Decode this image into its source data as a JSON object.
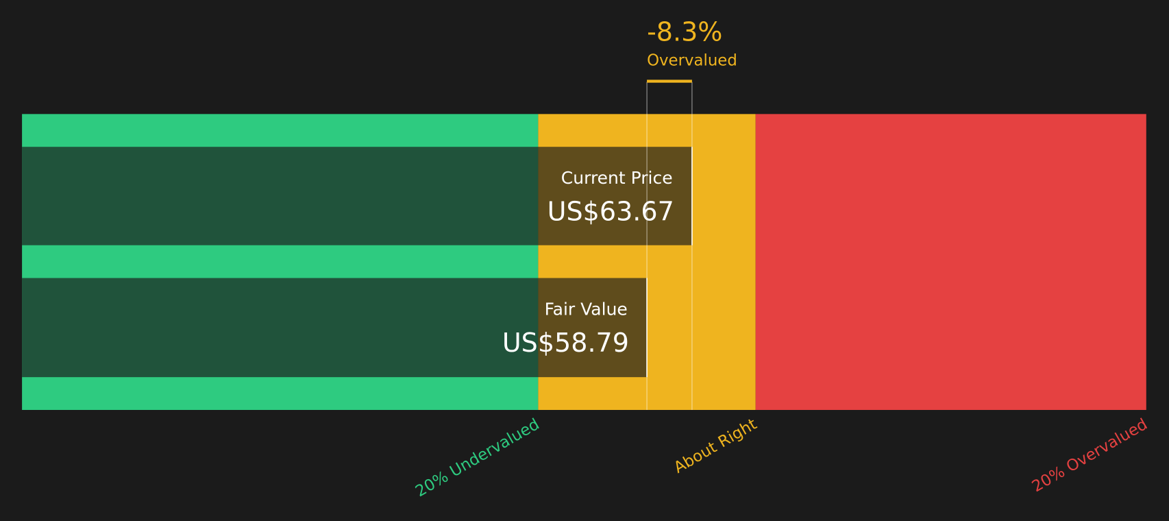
{
  "chart_data": {
    "type": "valuation",
    "xlim": [
      -8.8,
      112.8
    ],
    "zones": [
      {
        "label": "20% Undervalued",
        "color": "#2ecb80",
        "end": 47.03
      },
      {
        "label": "About Right",
        "color": "#efb41f",
        "end": 70.55
      },
      {
        "label": "20% Overvalued",
        "color": "#e54141",
        "end": 112.8
      }
    ],
    "bars": [
      {
        "name": "Current Price",
        "value": 63.67,
        "value_label": "US$63.67"
      },
      {
        "name": "Fair Value",
        "value": 58.79,
        "value_label": "US$58.79"
      }
    ],
    "difference": {
      "value": -8.3,
      "value_label": "-8.3%",
      "text": "Overvalued",
      "color": "#efb41f"
    }
  }
}
